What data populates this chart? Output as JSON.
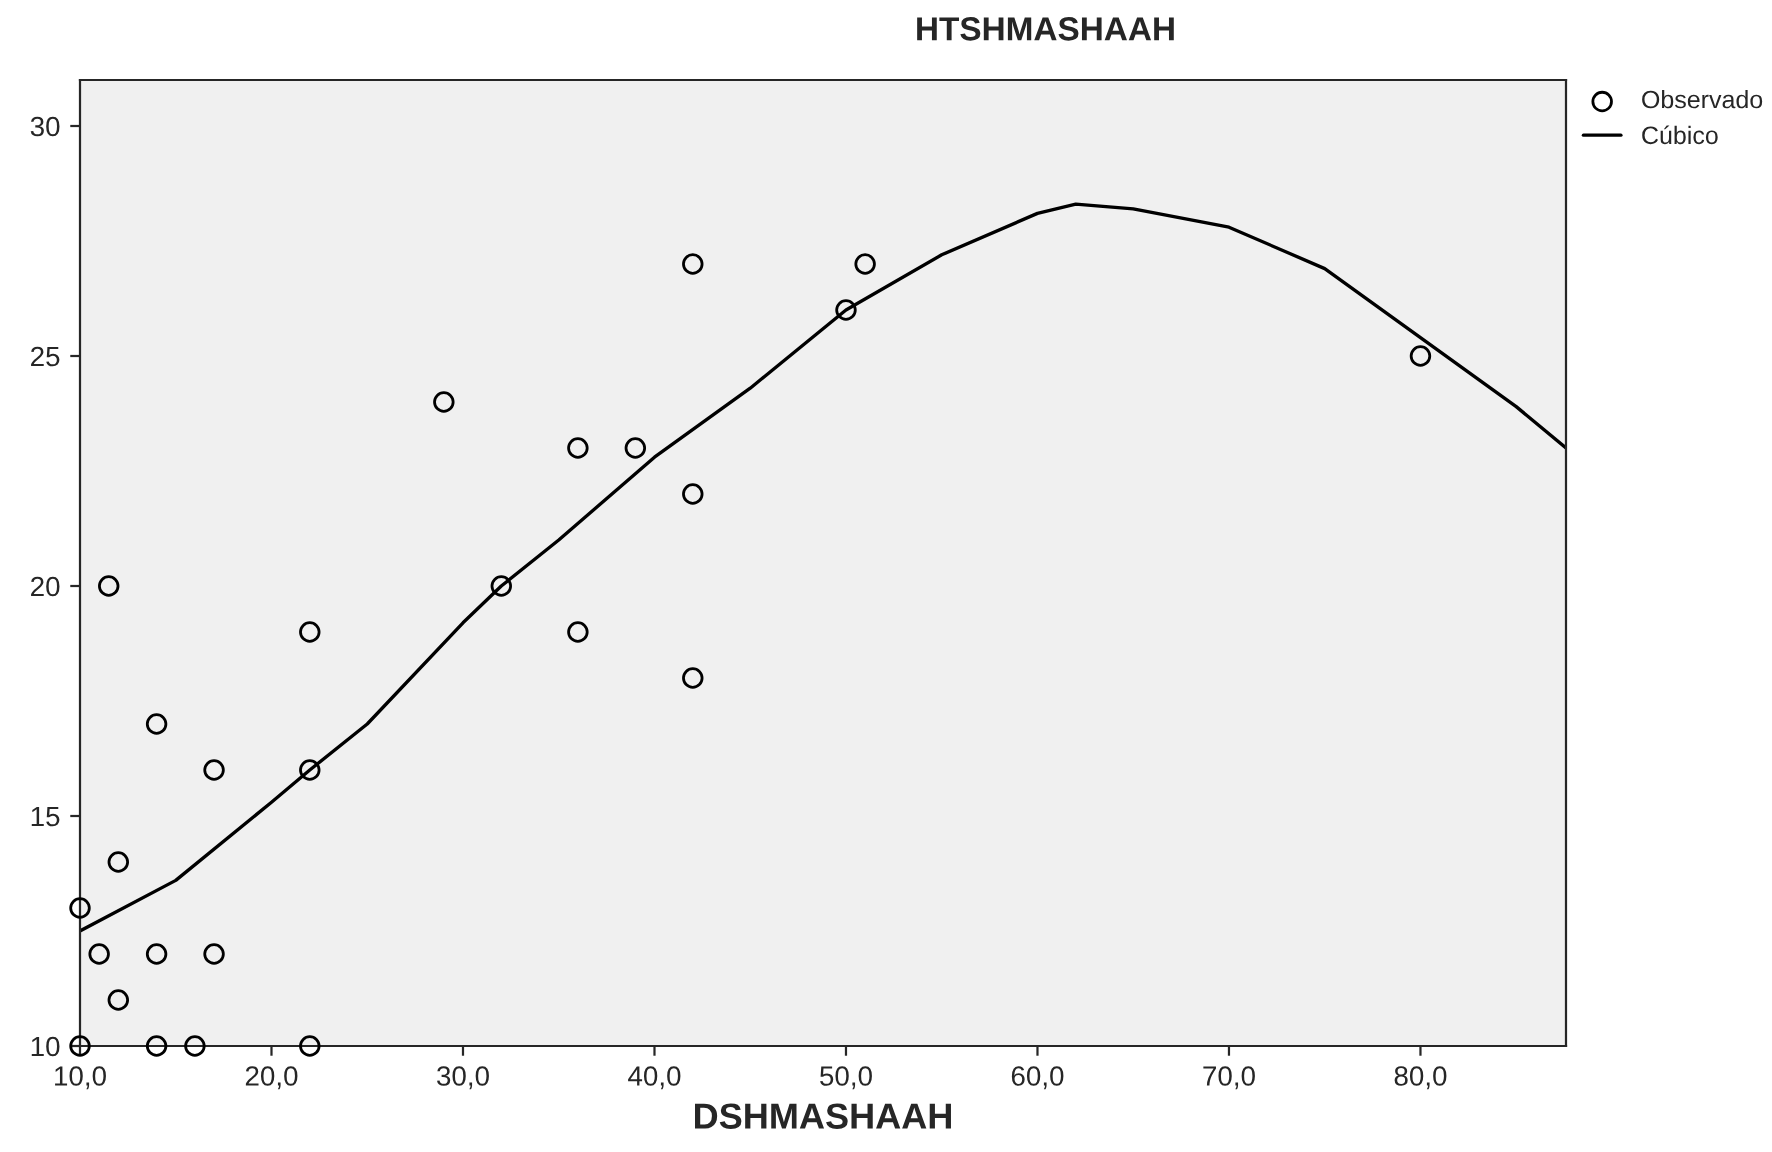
{
  "chart_data": {
    "type": "scatter",
    "title": "HTSHMASHAAH",
    "xlabel": "DSHMASHAAH",
    "xlim": [
      10,
      87.6
    ],
    "ylim": [
      10,
      31
    ],
    "xticks": [
      {
        "value": 10,
        "label": "10,0"
      },
      {
        "value": 20,
        "label": "20,0"
      },
      {
        "value": 30,
        "label": "30,0"
      },
      {
        "value": 40,
        "label": "40,0"
      },
      {
        "value": 50,
        "label": "50,0"
      },
      {
        "value": 60,
        "label": "60,0"
      },
      {
        "value": 70,
        "label": "70,0"
      },
      {
        "value": 80,
        "label": "80,0"
      }
    ],
    "yticks": [
      10,
      15,
      20,
      25,
      30
    ],
    "grid": false,
    "legend": "top right",
    "series": [
      {
        "name": "Observado",
        "marker": "circle",
        "color": "#000000",
        "x": [
          10,
          10,
          11,
          11.5,
          12,
          12,
          14,
          14,
          14,
          16,
          17,
          17,
          22,
          22,
          22,
          29,
          32,
          36,
          36,
          39,
          42,
          42,
          42,
          50,
          51,
          80
        ],
        "values": [
          10,
          13,
          12,
          20,
          11,
          14,
          17,
          12,
          10,
          10,
          16,
          12,
          19,
          16,
          10,
          24,
          20,
          23,
          19,
          23,
          27,
          22,
          18,
          26,
          27,
          25
        ]
      },
      {
        "name": "Cúbico",
        "type": "line",
        "marker": "none",
        "color": "#000000",
        "line_style": "solid",
        "x": [
          10,
          15,
          20,
          22,
          25,
          30,
          32,
          35,
          40,
          45,
          50,
          55,
          60,
          62,
          65,
          70,
          75,
          80,
          85,
          87.6
        ],
        "values": [
          12.5,
          13.6,
          15.3,
          16,
          17,
          19.2,
          20,
          21,
          22.8,
          24.3,
          26,
          27.2,
          28.1,
          28.3,
          28.2,
          27.8,
          26.9,
          25.4,
          23.9,
          23
        ]
      }
    ]
  }
}
